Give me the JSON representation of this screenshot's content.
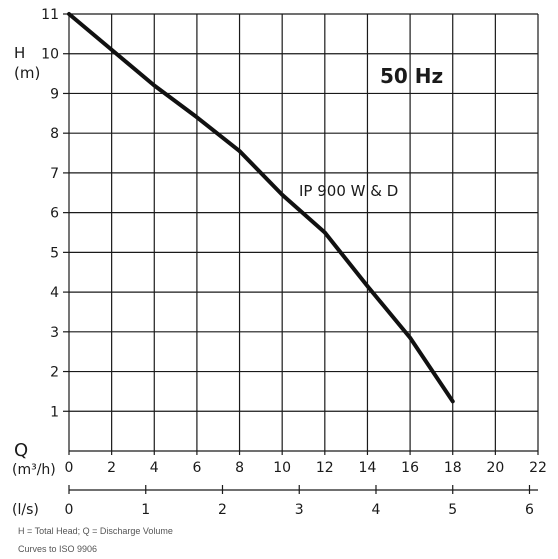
{
  "chart_data": {
    "type": "line",
    "ylabel": "H",
    "yunit": "(m)",
    "frequency": "50 Hz",
    "x_primary": {
      "label": "Q",
      "unit": "(m³/h)",
      "ticks": [
        0,
        2,
        4,
        6,
        8,
        10,
        12,
        14,
        16,
        18,
        20,
        22
      ],
      "lim": [
        0,
        22
      ]
    },
    "x_secondary": {
      "unit": "(l/s)",
      "ticks": [
        0,
        1,
        2,
        3,
        4,
        5,
        6
      ],
      "lim": [
        0,
        6.111
      ]
    },
    "ylim": [
      0,
      11
    ],
    "yticks": [
      1,
      2,
      3,
      4,
      5,
      6,
      7,
      8,
      9,
      10,
      11
    ],
    "grid": true,
    "series": [
      {
        "name": "IP 900 W & D",
        "x": [
          0,
          2,
          4,
          6,
          8,
          10,
          12,
          14,
          16,
          18
        ],
        "y": [
          11,
          10.1,
          9.2,
          8.4,
          7.55,
          6.45,
          5.5,
          4.15,
          2.85,
          1.25
        ]
      }
    ]
  },
  "footnote_1": "H = Total Head; Q = Discharge Volume",
  "footnote_2": "Curves to ISO 9906"
}
